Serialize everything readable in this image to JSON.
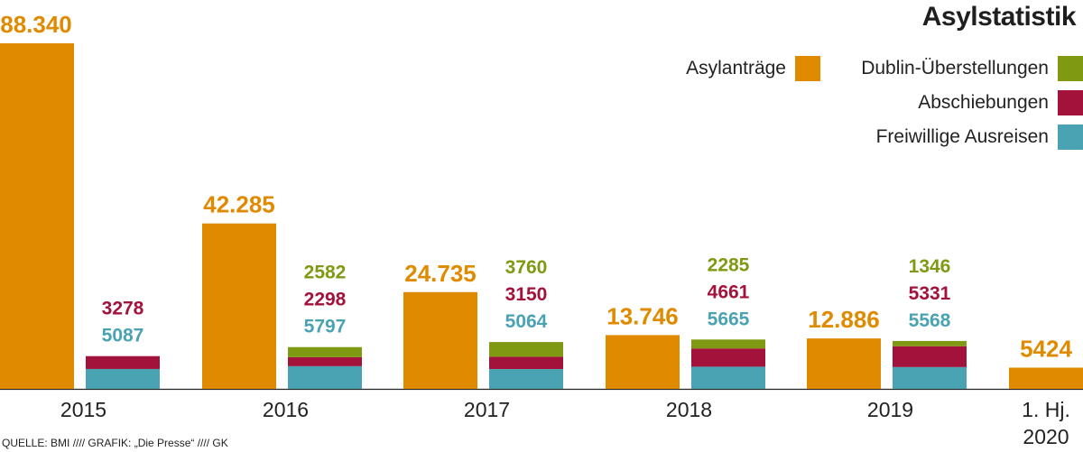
{
  "chart_data": {
    "type": "bar",
    "title": "Asylstatistik",
    "categories": [
      "2015",
      "2016",
      "2017",
      "2018",
      "2019",
      "1. Hj. 2020"
    ],
    "category_lines": [
      [
        "2015"
      ],
      [
        "2016"
      ],
      [
        "2017"
      ],
      [
        "2018"
      ],
      [
        "2019"
      ],
      [
        "1. Hj.",
        "2020"
      ]
    ],
    "series": [
      {
        "name": "Asylanträge",
        "color": "#e08a00",
        "values": [
          88340,
          42285,
          24735,
          13746,
          12886,
          5424
        ],
        "labels": [
          "88.340",
          "42.285",
          "24.735",
          "13.746",
          "12.886",
          "5424"
        ]
      },
      {
        "name": "Freiwillige Ausreisen",
        "color": "#4aa3b2",
        "stack": "returns",
        "values": [
          5087,
          5797,
          5064,
          5665,
          5568,
          null
        ],
        "labels": [
          "5087",
          "5797",
          "5064",
          "5665",
          "5568",
          ""
        ]
      },
      {
        "name": "Abschiebungen",
        "color": "#a3123a",
        "stack": "returns",
        "values": [
          3278,
          2298,
          3150,
          4661,
          5331,
          null
        ],
        "labels": [
          "3278",
          "2298",
          "3150",
          "4661",
          "5331",
          ""
        ]
      },
      {
        "name": "Dublin-Überstellungen",
        "color": "#7f9a12",
        "stack": "returns",
        "values": [
          null,
          2582,
          3760,
          2285,
          1346,
          null
        ],
        "labels": [
          "",
          "2582",
          "3760",
          "2285",
          "1346",
          ""
        ]
      }
    ],
    "ylim": [
      0,
      90000
    ],
    "grid": false,
    "legend": "top-right"
  },
  "legend": {
    "asyl": "Asylanträge",
    "dublin": "Dublin-Überstellungen",
    "abschiebungen": "Abschiebungen",
    "freiwillige": "Freiwillige Ausreisen"
  },
  "source": "QUELLE: BMI //// GRAFIK: „Die Presse“ //// GK"
}
